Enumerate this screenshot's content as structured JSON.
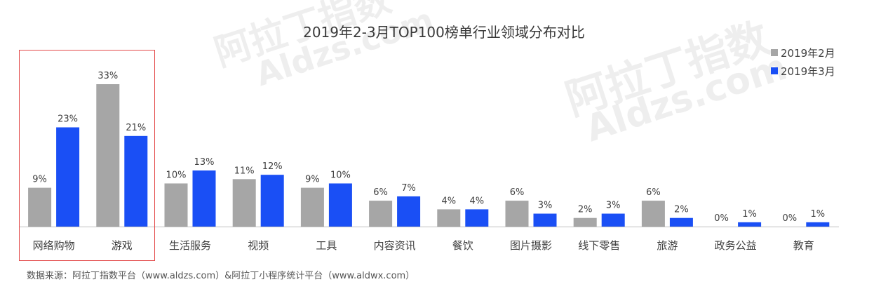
{
  "watermarks": [
    "阿拉丁指数",
    "Aldzs.com",
    "阿拉丁指数",
    "Aldzs.com"
  ],
  "footer": {
    "source": "数据来源：阿拉丁指数平台（www.aldzs.com）&阿拉丁小程序统计平台（www.aldwx.com）"
  },
  "colors": {
    "series1": "#a6a6a6",
    "series2": "#1a4ff5",
    "highlight": "#e34a4a",
    "axis": "#bfbfbf"
  },
  "chart_data": {
    "type": "bar",
    "title": "2019年2-3月TOP100榜单行业领域分布对比",
    "categories": [
      "网络购物",
      "游戏",
      "生活服务",
      "视频",
      "工具",
      "内容资讯",
      "餐饮",
      "图片摄影",
      "线下零售",
      "旅游",
      "政务公益",
      "教育"
    ],
    "series": [
      {
        "name": "2019年2月",
        "values": [
          9,
          33,
          10,
          11,
          9,
          6,
          4,
          6,
          2,
          6,
          0,
          0
        ],
        "labels": [
          "9%",
          "33%",
          "10%",
          "11%",
          "9%",
          "6%",
          "4%",
          "6%",
          "2%",
          "6%",
          "0%",
          "0%"
        ]
      },
      {
        "name": "2019年3月",
        "values": [
          23,
          21,
          13,
          12,
          10,
          7,
          4,
          3,
          3,
          2,
          1,
          1
        ],
        "labels": [
          "23%",
          "21%",
          "13%",
          "12%",
          "10%",
          "7%",
          "4%",
          "3%",
          "3%",
          "2%",
          "1%",
          "1%"
        ]
      }
    ],
    "ylim": [
      0,
      33
    ],
    "xlabel": "",
    "ylabel": "",
    "grid": false,
    "legend": "top-right",
    "highlighted_categories": [
      "网络购物",
      "游戏"
    ]
  }
}
